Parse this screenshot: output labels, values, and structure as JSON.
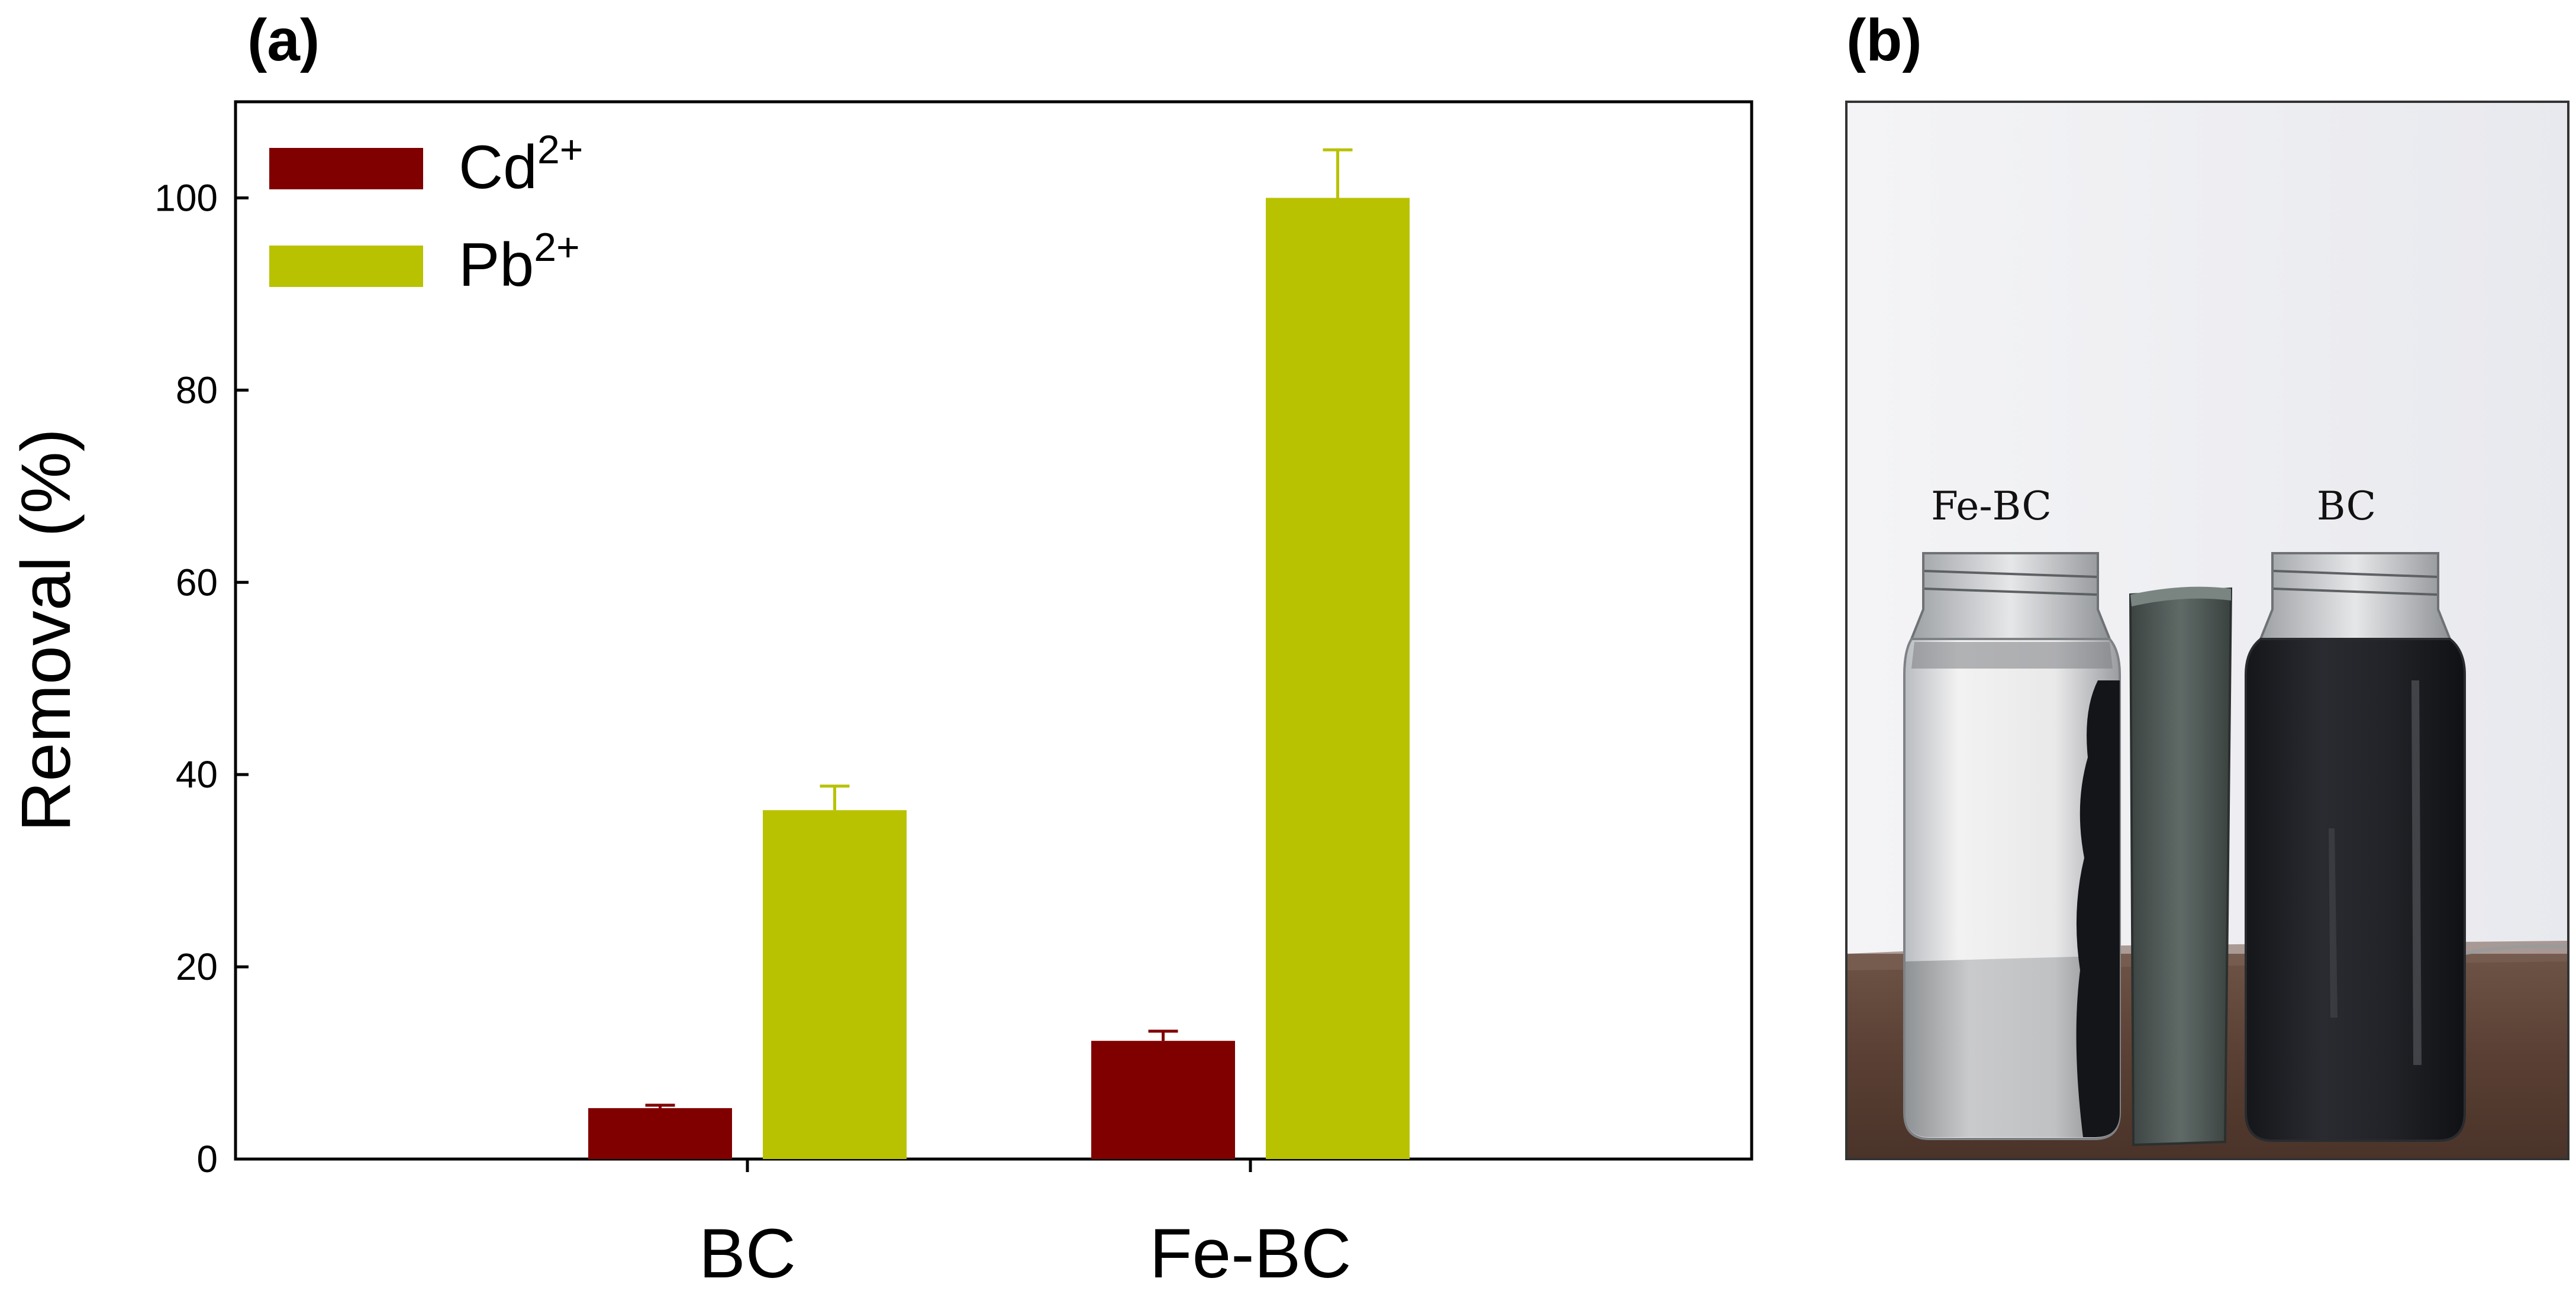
{
  "panel_a_label": "(a)",
  "panel_b_label": "(b)",
  "chart_data": {
    "type": "bar",
    "categories": [
      "BC",
      "Fe-BC"
    ],
    "series": [
      {
        "name": "Cd",
        "superscript": "2+",
        "color": "#800000",
        "values": [
          5.3,
          12.3
        ],
        "errors": [
          0.3,
          1.0
        ]
      },
      {
        "name": "Pb",
        "superscript": "2+",
        "color": "#b8c200",
        "values": [
          36.3,
          100.0
        ],
        "errors": [
          2.5,
          5.0
        ]
      }
    ],
    "ylabel": "Removal (%)",
    "ylim": [
      0,
      110
    ],
    "yticks": [
      0,
      20,
      40,
      60,
      80,
      100
    ],
    "legend_position": "top-left",
    "grid": false
  },
  "photo": {
    "labels": [
      "Fe-BC",
      "BC"
    ]
  }
}
